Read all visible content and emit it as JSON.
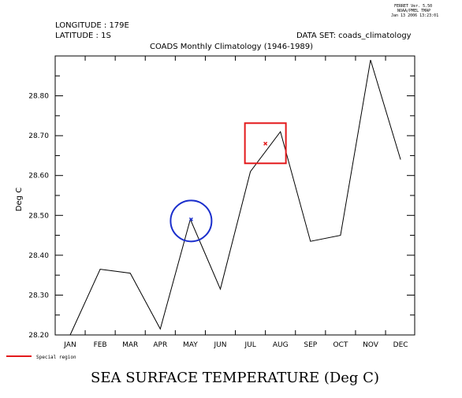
{
  "header": {
    "ferret_version": "FERRET Ver. 5.50",
    "org": "NOAA/PMEL TMAP",
    "timestamp": "Jan 13 2006 13:23:01",
    "longitude": "LONGITUDE : 179E",
    "latitude": "LATITUDE : 1S",
    "dataset": "DATA SET: coads_climatology",
    "subtitle": "COADS Monthly Climatology (1946-1989)"
  },
  "legend": {
    "label": "Special region"
  },
  "chart_data": {
    "type": "line",
    "title": "SEA SURFACE TEMPERATURE (Deg C)",
    "xlabel": "",
    "ylabel": "Deg C",
    "categories": [
      "JAN",
      "FEB",
      "MAR",
      "APR",
      "MAY",
      "JUN",
      "JUL",
      "AUG",
      "SEP",
      "OCT",
      "NOV",
      "DEC"
    ],
    "values": [
      28.2,
      28.365,
      28.355,
      28.215,
      28.49,
      28.315,
      28.61,
      28.71,
      28.435,
      28.45,
      28.89,
      28.64
    ],
    "ylim": [
      28.2,
      28.9
    ],
    "yticks": [
      "28.20",
      "28.30",
      "28.40",
      "28.50",
      "28.60",
      "28.70",
      "28.80"
    ],
    "annotations": {
      "circle_marker_color": "#1a2ecc",
      "square_marker_color": "#e31a1c",
      "star_marker": {
        "x": "MAY",
        "y": 28.49
      },
      "square_point": {
        "x": "JUL-AUG",
        "y": 28.68
      }
    },
    "grid": false,
    "colors": {
      "line": "#000000",
      "circle": "#1a2ecc",
      "square": "#e31a1c",
      "legend_line": "#e31a1c"
    }
  }
}
